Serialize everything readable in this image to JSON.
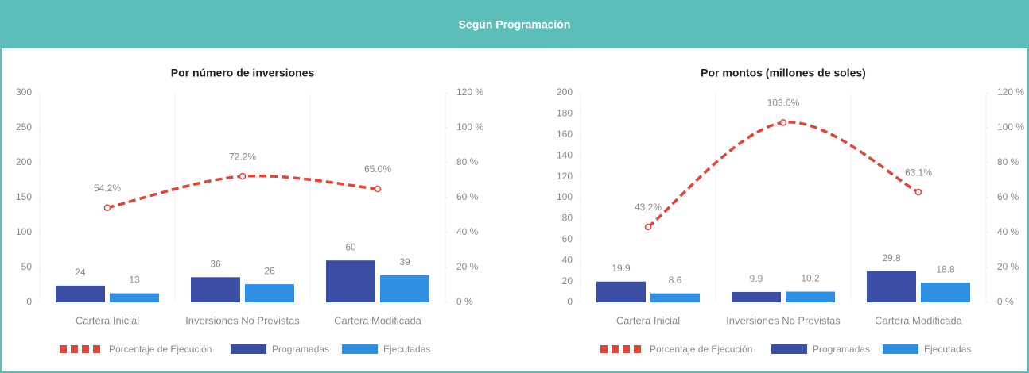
{
  "header": {
    "title": "Según Programación"
  },
  "chart_data": [
    {
      "type": "bar",
      "title": "Por número de inversiones",
      "categories": [
        "Cartera Inicial",
        "Inversiones No Previstas",
        "Cartera Modificada"
      ],
      "series": [
        {
          "name": "Porcentaje de Ejecución",
          "type": "line",
          "axis": "y2",
          "color": "#e0453a",
          "values": [
            54.2,
            72.2,
            65.0
          ],
          "value_labels": [
            "54.2%",
            "72.2%",
            "65.0%"
          ]
        },
        {
          "name": "Programadas",
          "type": "bar",
          "color": "#3a4fa3",
          "values": [
            24,
            36,
            60
          ]
        },
        {
          "name": "Ejecutadas",
          "type": "bar",
          "color": "#2e8fe3",
          "values": [
            13,
            26,
            39
          ]
        }
      ],
      "ylim": [
        0,
        300
      ],
      "yticks": [
        0,
        50,
        100,
        150,
        200,
        250,
        300
      ],
      "y2lim": [
        0,
        120
      ],
      "y2ticks": [
        {
          "value": 0,
          "label": "0 %"
        },
        {
          "value": 20,
          "label": "20 %"
        },
        {
          "value": 40,
          "label": "40 %"
        },
        {
          "value": 60,
          "label": "60 %"
        },
        {
          "value": 80,
          "label": "80 %"
        },
        {
          "value": 100,
          "label": "100 %"
        },
        {
          "value": 120,
          "label": "120 %"
        }
      ]
    },
    {
      "type": "bar",
      "title": "Por montos (millones de soles)",
      "categories": [
        "Cartera Inicial",
        "Inversiones No Previstas",
        "Cartera Modificada"
      ],
      "series": [
        {
          "name": "Porcentaje de Ejecución",
          "type": "line",
          "axis": "y2",
          "color": "#e0453a",
          "values": [
            43.2,
            103.0,
            63.1
          ],
          "value_labels": [
            "43.2%",
            "103.0%",
            "63.1%"
          ]
        },
        {
          "name": "Programadas",
          "type": "bar",
          "color": "#3a4fa3",
          "values": [
            19.9,
            9.9,
            29.8
          ]
        },
        {
          "name": "Ejecutadas",
          "type": "bar",
          "color": "#2e8fe3",
          "values": [
            8.6,
            10.2,
            18.8
          ]
        }
      ],
      "ylim": [
        0,
        200
      ],
      "yticks": [
        0,
        20,
        40,
        60,
        80,
        100,
        120,
        140,
        160,
        180,
        200
      ],
      "y2lim": [
        0,
        120
      ],
      "y2ticks": [
        {
          "value": 0,
          "label": "0 %"
        },
        {
          "value": 20,
          "label": "20 %"
        },
        {
          "value": 40,
          "label": "40 %"
        },
        {
          "value": 60,
          "label": "60 %"
        },
        {
          "value": 80,
          "label": "80 %"
        },
        {
          "value": 100,
          "label": "100 %"
        },
        {
          "value": 120,
          "label": "120 %"
        }
      ]
    }
  ]
}
